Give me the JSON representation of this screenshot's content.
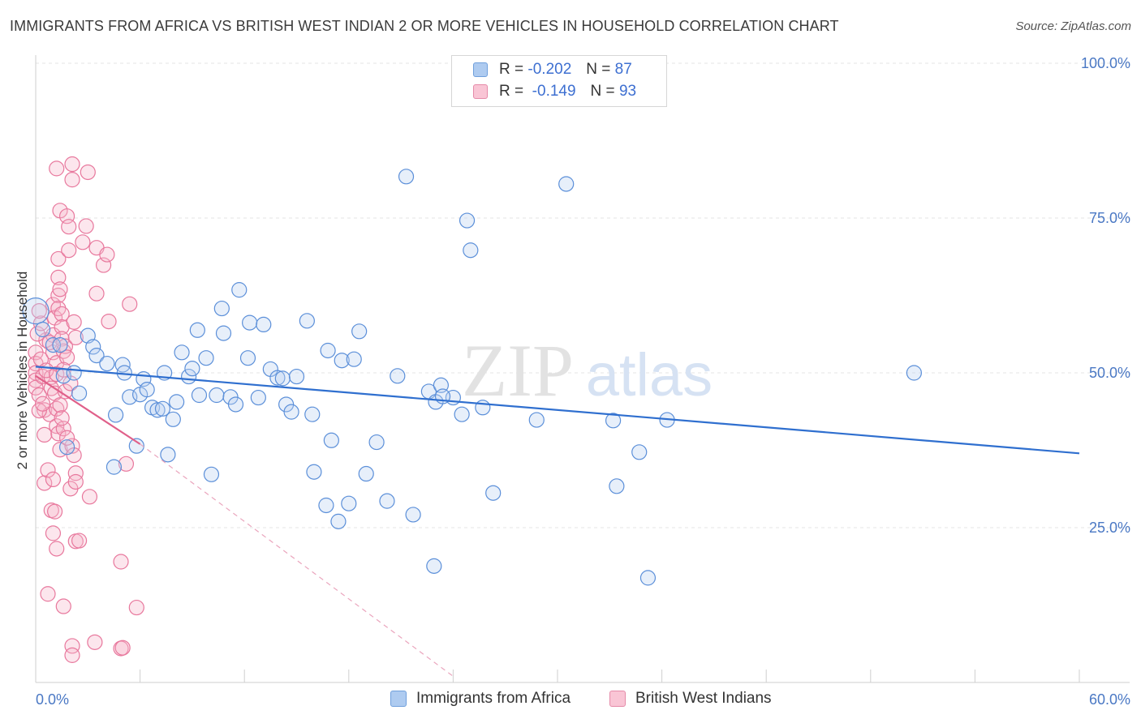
{
  "title": "IMMIGRANTS FROM AFRICA VS BRITISH WEST INDIAN 2 OR MORE VEHICLES IN HOUSEHOLD CORRELATION CHART",
  "source": "Source: ZipAtlas.com",
  "watermark": {
    "zip": "ZIP",
    "atlas": "atlas"
  },
  "legend": {
    "r_label": "R =",
    "n_label": "N =",
    "rows": [
      {
        "r": "-0.202",
        "n": "87",
        "color": "#aecbf0",
        "border": "#6f9fdc"
      },
      {
        "r": "-0.149",
        "n": "93",
        "color": "#f9c5d5",
        "border": "#e58aa8"
      }
    ]
  },
  "colors": {
    "blue": "#5b8fd9",
    "pink": "#e8789d",
    "blue_line": "#2f6fcf",
    "pink_line": "#e0608a"
  },
  "chart_data": {
    "type": "scatter",
    "title": "IMMIGRANTS FROM AFRICA VS BRITISH WEST INDIAN 2 OR MORE VEHICLES IN HOUSEHOLD CORRELATION CHART",
    "xlabel": "",
    "ylabel": "2 or more Vehicles in Household",
    "xlim": [
      0,
      60
    ],
    "ylim": [
      0,
      100
    ],
    "x_tick_labels": [
      "0.0%",
      "60.0%"
    ],
    "y_tick_labels": [
      "100.0%",
      "75.0%",
      "50.0%",
      "25.0%"
    ],
    "y_ticks": [
      100,
      75,
      50,
      25
    ],
    "grid": true,
    "legend_position": "top-center",
    "series": [
      {
        "name": "Immigrants from Africa",
        "color": "#5b8fd9",
        "trend": {
          "x": [
            0,
            60
          ],
          "y": [
            51.0,
            37.0
          ]
        },
        "points": [
          [
            0.0,
            60.0
          ],
          [
            0.4,
            57.0
          ],
          [
            1.0,
            54.5
          ],
          [
            1.4,
            54.5
          ],
          [
            1.6,
            49.5
          ],
          [
            1.8,
            38.0
          ],
          [
            2.2,
            50.0
          ],
          [
            2.5,
            46.7
          ],
          [
            3.0,
            56.0
          ],
          [
            3.3,
            54.2
          ],
          [
            3.5,
            52.8
          ],
          [
            4.1,
            51.5
          ],
          [
            4.6,
            43.2
          ],
          [
            5.0,
            51.3
          ],
          [
            5.1,
            50.0
          ],
          [
            5.4,
            46.1
          ],
          [
            5.8,
            38.2
          ],
          [
            6.0,
            46.5
          ],
          [
            6.2,
            49.0
          ],
          [
            6.4,
            47.3
          ],
          [
            6.7,
            44.4
          ],
          [
            7.0,
            44.0
          ],
          [
            7.4,
            50.0
          ],
          [
            7.6,
            36.8
          ],
          [
            7.9,
            42.5
          ],
          [
            8.1,
            45.3
          ],
          [
            8.4,
            53.3
          ],
          [
            8.8,
            49.4
          ],
          [
            9.0,
            50.7
          ],
          [
            9.3,
            56.9
          ],
          [
            9.4,
            46.4
          ],
          [
            9.8,
            52.4
          ],
          [
            10.1,
            33.6
          ],
          [
            10.4,
            46.4
          ],
          [
            10.7,
            60.4
          ],
          [
            10.8,
            56.4
          ],
          [
            11.2,
            46.1
          ],
          [
            11.5,
            44.9
          ],
          [
            11.7,
            63.4
          ],
          [
            12.2,
            52.4
          ],
          [
            12.3,
            58.1
          ],
          [
            12.8,
            46.0
          ],
          [
            13.1,
            57.8
          ],
          [
            13.5,
            50.6
          ],
          [
            13.9,
            49.2
          ],
          [
            14.2,
            49.1
          ],
          [
            14.4,
            44.9
          ],
          [
            14.7,
            43.7
          ],
          [
            15.0,
            49.4
          ],
          [
            15.6,
            58.4
          ],
          [
            15.9,
            43.3
          ],
          [
            16.0,
            34.0
          ],
          [
            16.7,
            28.6
          ],
          [
            16.8,
            53.6
          ],
          [
            17.0,
            39.1
          ],
          [
            17.4,
            26.0
          ],
          [
            17.6,
            52.0
          ],
          [
            18.0,
            28.9
          ],
          [
            18.3,
            52.2
          ],
          [
            18.6,
            56.7
          ],
          [
            19.0,
            33.7
          ],
          [
            19.6,
            38.8
          ],
          [
            20.2,
            29.3
          ],
          [
            20.8,
            49.5
          ],
          [
            21.3,
            81.7
          ],
          [
            21.7,
            27.1
          ],
          [
            22.6,
            47.0
          ],
          [
            22.9,
            18.8
          ],
          [
            23.0,
            45.3
          ],
          [
            23.3,
            48.0
          ],
          [
            24.0,
            46.0
          ],
          [
            24.5,
            43.3
          ],
          [
            24.8,
            74.6
          ],
          [
            25.0,
            69.8
          ],
          [
            25.7,
            44.4
          ],
          [
            26.3,
            30.6
          ],
          [
            28.8,
            42.4
          ],
          [
            30.5,
            80.5
          ],
          [
            33.2,
            42.3
          ],
          [
            33.4,
            31.7
          ],
          [
            34.7,
            37.2
          ],
          [
            35.2,
            16.9
          ],
          [
            36.3,
            42.4
          ],
          [
            50.5,
            50.0
          ],
          [
            7.3,
            44.2
          ],
          [
            4.5,
            34.8
          ],
          [
            23.4,
            46.2
          ]
        ]
      },
      {
        "name": "British West Indians",
        "color": "#e8789d",
        "trend": {
          "x": [
            0,
            6.0
          ],
          "y": [
            49.5,
            38.5
          ]
        },
        "trend_dashed": {
          "x": [
            6.0,
            24.0
          ],
          "y": [
            38.5,
            1.0
          ]
        },
        "points": [
          [
            0.0,
            53.3
          ],
          [
            0.0,
            51.5
          ],
          [
            0.0,
            50.0
          ],
          [
            0.0,
            48.8
          ],
          [
            0.0,
            47.6
          ],
          [
            0.2,
            46.4
          ],
          [
            0.3,
            52.2
          ],
          [
            0.4,
            49.4
          ],
          [
            0.5,
            44.0
          ],
          [
            0.5,
            40.0
          ],
          [
            0.5,
            32.2
          ],
          [
            0.6,
            55.3
          ],
          [
            0.7,
            34.3
          ],
          [
            0.7,
            14.3
          ],
          [
            0.8,
            43.3
          ],
          [
            0.9,
            49.3
          ],
          [
            0.9,
            27.8
          ],
          [
            1.0,
            61.0
          ],
          [
            1.0,
            56.1
          ],
          [
            1.0,
            53.3
          ],
          [
            1.0,
            32.8
          ],
          [
            1.0,
            24.1
          ],
          [
            1.1,
            27.6
          ],
          [
            1.1,
            58.9
          ],
          [
            1.2,
            83.0
          ],
          [
            1.2,
            51.6
          ],
          [
            1.2,
            44.2
          ],
          [
            1.2,
            41.4
          ],
          [
            1.2,
            21.6
          ],
          [
            1.3,
            68.4
          ],
          [
            1.3,
            65.4
          ],
          [
            1.3,
            62.5
          ],
          [
            1.3,
            60.4
          ],
          [
            1.3,
            40.2
          ],
          [
            1.4,
            63.5
          ],
          [
            1.4,
            37.6
          ],
          [
            1.4,
            76.2
          ],
          [
            1.5,
            59.5
          ],
          [
            1.5,
            57.4
          ],
          [
            1.5,
            55.5
          ],
          [
            1.6,
            53.5
          ],
          [
            1.6,
            41.0
          ],
          [
            1.6,
            12.3
          ],
          [
            1.7,
            54.3
          ],
          [
            1.8,
            52.5
          ],
          [
            1.8,
            75.3
          ],
          [
            1.9,
            73.6
          ],
          [
            1.9,
            69.8
          ],
          [
            2.0,
            31.3
          ],
          [
            2.1,
            83.7
          ],
          [
            2.1,
            81.2
          ],
          [
            2.1,
            38.2
          ],
          [
            2.1,
            5.9
          ],
          [
            2.1,
            4.4
          ],
          [
            2.2,
            58.2
          ],
          [
            2.3,
            55.7
          ],
          [
            2.3,
            33.8
          ],
          [
            2.3,
            32.4
          ],
          [
            2.3,
            22.8
          ],
          [
            2.5,
            22.9
          ],
          [
            2.7,
            71.1
          ],
          [
            2.9,
            73.7
          ],
          [
            3.0,
            82.4
          ],
          [
            3.1,
            30.0
          ],
          [
            3.4,
            6.5
          ],
          [
            3.5,
            70.2
          ],
          [
            3.5,
            62.8
          ],
          [
            3.9,
            67.4
          ],
          [
            4.1,
            69.1
          ],
          [
            4.2,
            58.3
          ],
          [
            4.9,
            19.5
          ],
          [
            4.9,
            5.5
          ],
          [
            5.0,
            5.6
          ],
          [
            5.2,
            35.3
          ],
          [
            5.4,
            61.1
          ],
          [
            5.8,
            12.1
          ],
          [
            0.1,
            56.3
          ],
          [
            0.2,
            43.9
          ],
          [
            0.3,
            58.0
          ],
          [
            0.4,
            45.0
          ],
          [
            0.6,
            50.4
          ],
          [
            0.8,
            54.9
          ],
          [
            0.9,
            47.5
          ],
          [
            1.1,
            46.7
          ],
          [
            1.2,
            49.8
          ],
          [
            1.4,
            44.8
          ],
          [
            1.5,
            42.7
          ],
          [
            1.6,
            50.5
          ],
          [
            1.7,
            47.0
          ],
          [
            1.8,
            39.5
          ],
          [
            2.0,
            48.3
          ],
          [
            2.2,
            36.7
          ],
          [
            0.2,
            60.0
          ]
        ]
      }
    ]
  }
}
